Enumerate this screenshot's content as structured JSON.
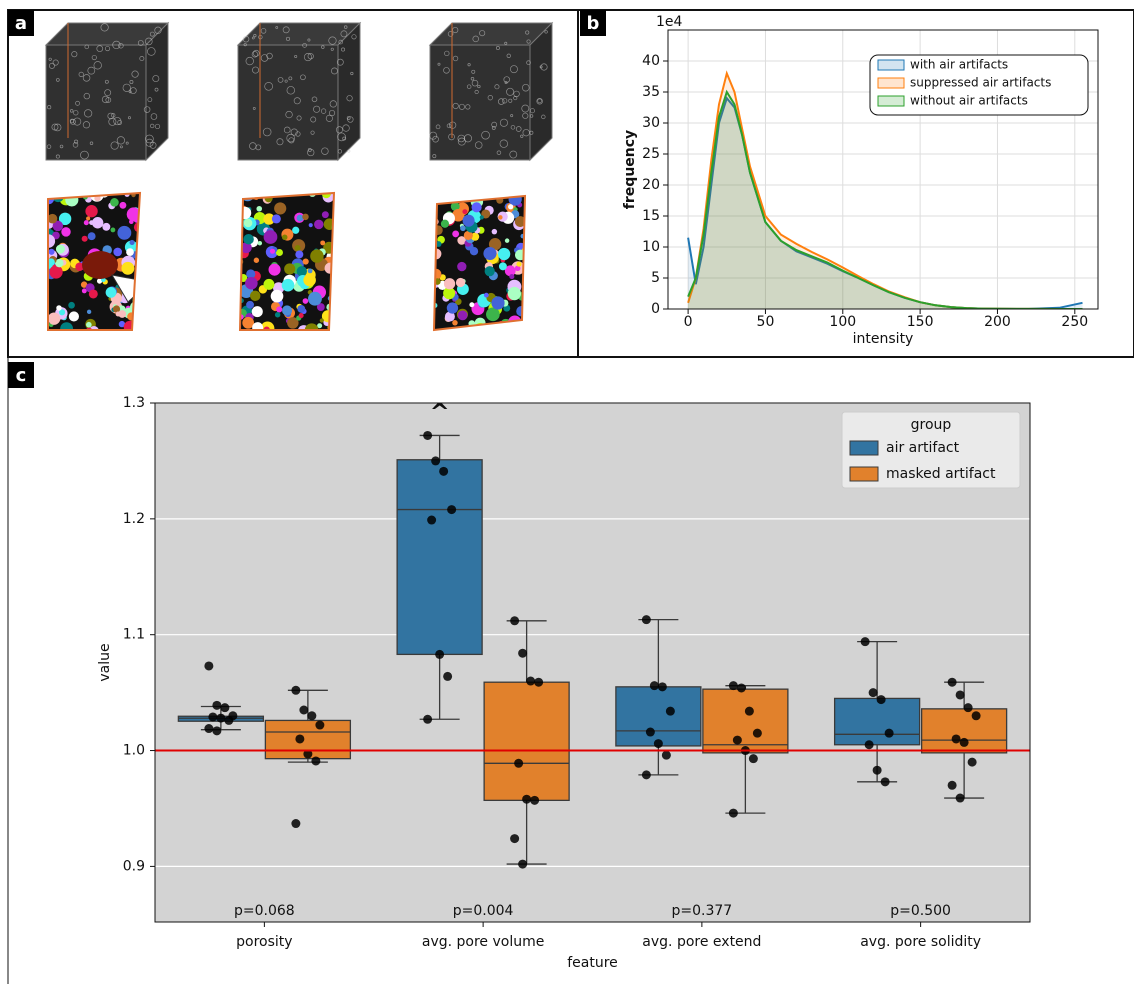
{
  "panel_labels": [
    "a",
    "b",
    "c"
  ],
  "chart_data": [
    {
      "type": "line",
      "offset_text": "1e4",
      "xlabel": "intensity",
      "ylabel": "frequency",
      "x": [
        0,
        5,
        10,
        15,
        20,
        25,
        30,
        35,
        40,
        50,
        60,
        70,
        80,
        90,
        100,
        110,
        120,
        130,
        140,
        150,
        160,
        170,
        180,
        190,
        200,
        220,
        240,
        255
      ],
      "xlim": [
        -13,
        265
      ],
      "ylim": [
        0,
        45
      ],
      "xticks": [
        0,
        50,
        100,
        150,
        200,
        250
      ],
      "yticks": [
        0,
        5,
        10,
        15,
        20,
        25,
        30,
        35,
        40
      ],
      "grid": true,
      "legend": "upper right",
      "series": [
        {
          "name": "with air artifacts",
          "color": "#1f77b4",
          "values": [
            11.5,
            4,
            10,
            20,
            30,
            34,
            32.5,
            28,
            22,
            14,
            11,
            9.3,
            8.3,
            7.3,
            6.1,
            5,
            3.8,
            2.7,
            1.8,
            1.1,
            0.6,
            0.3,
            0.15,
            0.07,
            0.03,
            0.01,
            0.2,
            1
          ]
        },
        {
          "name": "suppressed air artifacts",
          "color": "#ff7f0e",
          "values": [
            1,
            5,
            13,
            24,
            33,
            38,
            35,
            29,
            23,
            15,
            12,
            10.5,
            9.2,
            8,
            6.7,
            5.3,
            4,
            2.8,
            1.9,
            1.1,
            0.6,
            0.3,
            0.15,
            0.07,
            0.03,
            0.01,
            0,
            0
          ]
        },
        {
          "name": "without air artifacts",
          "color": "#2ca02c",
          "values": [
            2,
            5,
            12,
            22,
            31,
            35,
            33,
            28,
            22,
            14,
            11,
            9.5,
            8.5,
            7.5,
            6.2,
            5,
            3.8,
            2.7,
            1.8,
            1.1,
            0.6,
            0.3,
            0.15,
            0.07,
            0.03,
            0.01,
            0,
            0
          ]
        }
      ]
    },
    {
      "type": "box",
      "xlabel": "feature",
      "ylabel": "value",
      "categories": [
        "porosity",
        "avg. pore volume",
        "avg. pore extend",
        "avg. pore solidity"
      ],
      "ylim": [
        0.852,
        1.3
      ],
      "yticks": [
        0.9,
        {
          "value": 1,
          "label": "1.0"
        },
        1.1,
        1.2,
        1.3
      ],
      "grid": true,
      "reference_line": {
        "value": 1,
        "color": "#e00000"
      },
      "legend_title": "group",
      "legend": "upper right",
      "annotations": [
        "p=0.068",
        "p=0.004",
        "p=0.377",
        "p=0.500"
      ],
      "series": [
        {
          "name": "air artifact",
          "color": "#3274a1",
          "q1": [
            1.0253,
            1.083,
            1.004,
            1.005
          ],
          "median": [
            1.0279,
            1.208,
            1.017,
            1.014
          ],
          "q3": [
            1.0296,
            1.251,
            1.055,
            1.045
          ],
          "whislo": [
            1.018,
            1.027,
            0.979,
            0.973
          ],
          "whishi": [
            1.038,
            1.272,
            1.113,
            1.094
          ],
          "points": [
            [
              1.073,
              1.039,
              1.037,
              1.03,
              1.029,
              1.028,
              1.026,
              1.019,
              1.017
            ],
            [
              1.272,
              1.25,
              1.241,
              1.208,
              1.199,
              1.083,
              1.064,
              1.027
            ],
            [
              1.113,
              1.056,
              1.055,
              1.034,
              1.016,
              1.006,
              0.996,
              0.979
            ],
            [
              1.094,
              1.05,
              1.044,
              1.015,
              1.005,
              0.983,
              0.973
            ]
          ],
          "overflow": [
            null,
            "^",
            null,
            null
          ]
        },
        {
          "name": "masked artifact",
          "color": "#e1812c",
          "q1": [
            0.993,
            0.957,
            0.998,
            0.998
          ],
          "median": [
            1.016,
            0.989,
            1.005,
            1.009
          ],
          "q3": [
            1.026,
            1.059,
            1.053,
            1.036
          ],
          "whislo": [
            0.99,
            0.902,
            0.946,
            0.959
          ],
          "whishi": [
            1.052,
            1.112,
            1.056,
            1.059
          ],
          "points": [
            [
              1.052,
              1.035,
              1.03,
              1.022,
              1.01,
              0.997,
              0.991,
              0.937
            ],
            [
              1.112,
              1.084,
              1.06,
              1.059,
              0.989,
              0.958,
              0.957,
              0.924,
              0.902
            ],
            [
              1.056,
              1.054,
              1.034,
              1.015,
              1.009,
              1.0,
              0.993,
              0.946
            ],
            [
              1.059,
              1.048,
              1.037,
              1.03,
              1.01,
              1.007,
              0.99,
              0.97,
              0.959
            ]
          ],
          "overflow": [
            null,
            null,
            null,
            null
          ]
        }
      ]
    }
  ]
}
